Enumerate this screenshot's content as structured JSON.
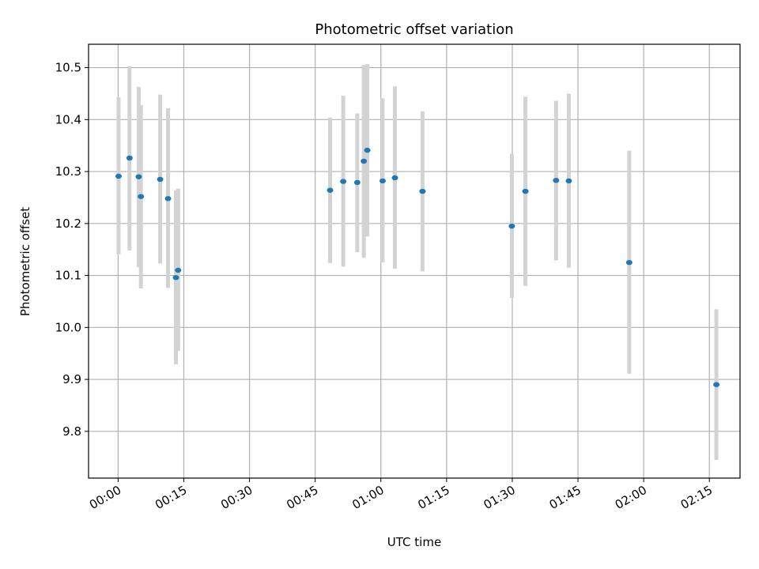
{
  "chart_data": {
    "type": "scatter",
    "title": "Photometric offset variation",
    "xlabel": "UTC time",
    "ylabel": "Photometric offset",
    "xlim": [
      "-00:06:45",
      "02:22:00"
    ],
    "ylim": [
      9.71,
      10.545
    ],
    "xticks": [
      "00:00",
      "00:15",
      "00:30",
      "00:45",
      "01:00",
      "01:15",
      "01:30",
      "01:45",
      "02:00",
      "02:15"
    ],
    "yticks": [
      "9.8",
      "9.9",
      "10.0",
      "10.1",
      "10.2",
      "10.3",
      "10.4",
      "10.5"
    ],
    "grid": true,
    "colors": {
      "point": "#1f77b4",
      "errorbar": "#d3d3d3",
      "grid": "#b0b0b0"
    },
    "points": [
      {
        "x": "00:00:06",
        "y": 10.291,
        "ylow": 10.141,
        "yhigh": 10.443
      },
      {
        "x": "00:02:36",
        "y": 10.326,
        "ylow": 10.148,
        "yhigh": 10.503
      },
      {
        "x": "00:04:42",
        "y": 10.29,
        "ylow": 10.116,
        "yhigh": 10.463
      },
      {
        "x": "00:05:12",
        "y": 10.252,
        "ylow": 10.075,
        "yhigh": 10.428
      },
      {
        "x": "00:09:36",
        "y": 10.285,
        "ylow": 10.123,
        "yhigh": 10.448
      },
      {
        "x": "00:11:24",
        "y": 10.248,
        "ylow": 10.076,
        "yhigh": 10.422
      },
      {
        "x": "00:13:12",
        "y": 10.096,
        "ylow": 9.929,
        "yhigh": 10.264
      },
      {
        "x": "00:13:42",
        "y": 10.11,
        "ylow": 9.955,
        "yhigh": 10.267
      },
      {
        "x": "00:48:24",
        "y": 10.264,
        "ylow": 10.124,
        "yhigh": 10.404
      },
      {
        "x": "00:51:24",
        "y": 10.281,
        "ylow": 10.117,
        "yhigh": 10.446
      },
      {
        "x": "00:54:36",
        "y": 10.279,
        "ylow": 10.145,
        "yhigh": 10.412
      },
      {
        "x": "00:56:06",
        "y": 10.32,
        "ylow": 10.134,
        "yhigh": 10.505
      },
      {
        "x": "00:56:54",
        "y": 10.341,
        "ylow": 10.175,
        "yhigh": 10.507
      },
      {
        "x": "01:00:24",
        "y": 10.282,
        "ylow": 10.125,
        "yhigh": 10.441
      },
      {
        "x": "01:03:12",
        "y": 10.288,
        "ylow": 10.113,
        "yhigh": 10.464
      },
      {
        "x": "01:09:30",
        "y": 10.262,
        "ylow": 10.108,
        "yhigh": 10.416
      },
      {
        "x": "01:29:54",
        "y": 10.195,
        "ylow": 10.057,
        "yhigh": 10.334
      },
      {
        "x": "01:33:00",
        "y": 10.262,
        "ylow": 10.08,
        "yhigh": 10.444
      },
      {
        "x": "01:40:00",
        "y": 10.283,
        "ylow": 10.129,
        "yhigh": 10.436
      },
      {
        "x": "01:42:54",
        "y": 10.282,
        "ylow": 10.115,
        "yhigh": 10.45
      },
      {
        "x": "01:56:42",
        "y": 10.125,
        "ylow": 9.911,
        "yhigh": 10.34
      },
      {
        "x": "02:16:36",
        "y": 9.89,
        "ylow": 9.745,
        "yhigh": 10.035
      }
    ]
  }
}
